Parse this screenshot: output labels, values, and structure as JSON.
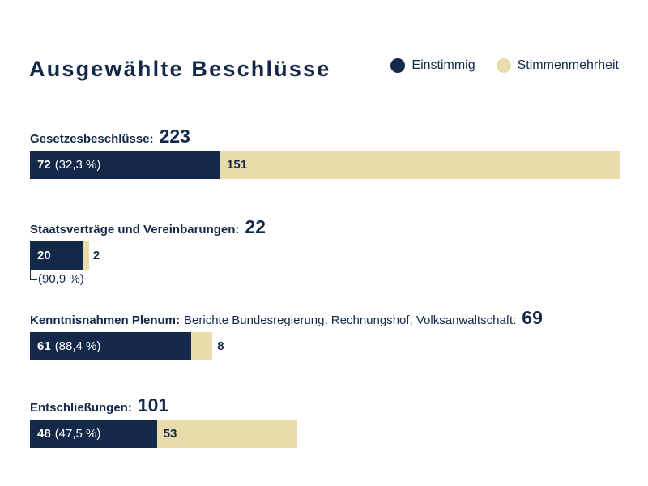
{
  "chart_data": {
    "type": "bar",
    "orientation": "horizontal-stacked",
    "title": "Ausgewählte Beschlüsse",
    "legend": {
      "placement": "top-right"
    },
    "series_meta": [
      {
        "name": "Einstimmig",
        "color": "#14294a"
      },
      {
        "name": "Stimmenmehrheit",
        "color": "#e8dcaa"
      }
    ],
    "groups": [
      {
        "label": "Gesetzesbeschlüsse:",
        "description": "",
        "total": "223",
        "einstimmig": 72,
        "einstimmig_label": "72",
        "percent": "(32,3 %)",
        "mehrheit": 151,
        "mehrheit_label": "151"
      },
      {
        "label": "Staatsverträge und Vereinbarungen:",
        "description": "",
        "total": "22",
        "einstimmig": 20,
        "einstimmig_label": "20",
        "percent": "(90,9 %)",
        "mehrheit": 2,
        "mehrheit_label": "2"
      },
      {
        "label": "Kenntnisnahmen Plenum:",
        "description": "Berichte Bundesregierung, Rechnungshof, Volksanwaltschaft:",
        "total": "69",
        "einstimmig": 61,
        "einstimmig_label": "61",
        "percent": "(88,4 %)",
        "mehrheit": 8,
        "mehrheit_label": "8"
      },
      {
        "label": "Entschließungen:",
        "description": "",
        "total": "101",
        "einstimmig": 48,
        "einstimmig_label": "48",
        "percent": "(47,5 %)",
        "mehrheit": 53,
        "mehrheit_label": "53"
      }
    ]
  }
}
